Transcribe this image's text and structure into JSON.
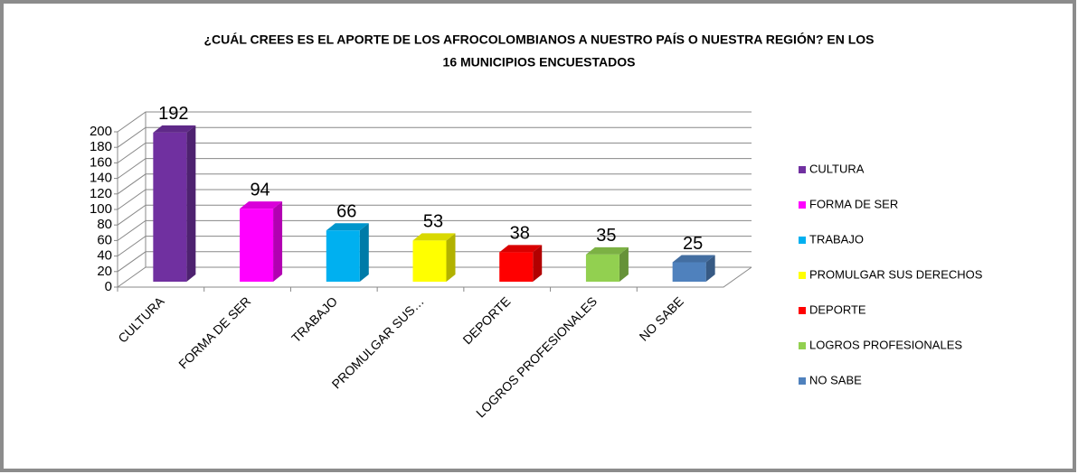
{
  "chart_data": {
    "type": "bar3d",
    "title": "¿CUÁL CREES ES EL APORTE DE LOS AFROCOLOMBIANOS A NUESTRO PAÍS O NUESTRA REGIÓN? EN LOS",
    "subtitle": "16 MUNICIPIOS ENCUESTADOS",
    "categories": [
      "CULTURA",
      "FORMA DE SER",
      "TRABAJO",
      "PROMULGAR SUS…",
      "DEPORTE",
      "LOGROS PROFESIONALES",
      "NO SABE"
    ],
    "legend_labels": [
      "CULTURA",
      "FORMA DE SER",
      "TRABAJO",
      "PROMULGAR SUS DERECHOS",
      "DEPORTE",
      "LOGROS PROFESIONALES",
      "NO SABE"
    ],
    "values": [
      192,
      94,
      66,
      53,
      38,
      35,
      25
    ],
    "colors": [
      "#7030a0",
      "#ff00ff",
      "#00b0f0",
      "#ffff00",
      "#ff0000",
      "#92d050",
      "#4f81bd"
    ],
    "ylim": [
      0,
      200
    ],
    "yticks": [
      0,
      20,
      40,
      60,
      80,
      100,
      120,
      140,
      160,
      180,
      200
    ],
    "grid": true,
    "legend_position": "right"
  }
}
